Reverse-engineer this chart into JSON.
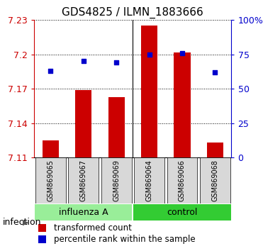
{
  "title": "GDS4825 / ILMN_1883666",
  "samples": [
    "GSM869065",
    "GSM869067",
    "GSM869069",
    "GSM869064",
    "GSM869066",
    "GSM869068"
  ],
  "bar_values": [
    7.125,
    7.169,
    7.163,
    7.225,
    7.202,
    7.123
  ],
  "percentile_values": [
    63,
    70,
    69,
    75,
    76,
    62
  ],
  "bar_color": "#cc0000",
  "dot_color": "#0000cc",
  "ylim_left": [
    7.11,
    7.23
  ],
  "ylim_right": [
    0,
    100
  ],
  "yticks_left": [
    7.11,
    7.14,
    7.17,
    7.2,
    7.23
  ],
  "yticks_right": [
    0,
    25,
    50,
    75,
    100
  ],
  "ytick_labels_right": [
    "0",
    "25",
    "50",
    "75",
    "100%"
  ],
  "groups": [
    {
      "label": "influenza A",
      "n": 3,
      "color": "#99ee99"
    },
    {
      "label": "control",
      "n": 3,
      "color": "#33cc33"
    }
  ],
  "group_label": "infection",
  "legend_bar_label": "transformed count",
  "legend_dot_label": "percentile rank within the sample",
  "title_fontsize": 11,
  "tick_fontsize": 9,
  "label_fontsize": 9,
  "sample_box_color": "#d8d8d8",
  "background_color": "#ffffff",
  "grid_color": "#000000",
  "bar_width": 0.5
}
